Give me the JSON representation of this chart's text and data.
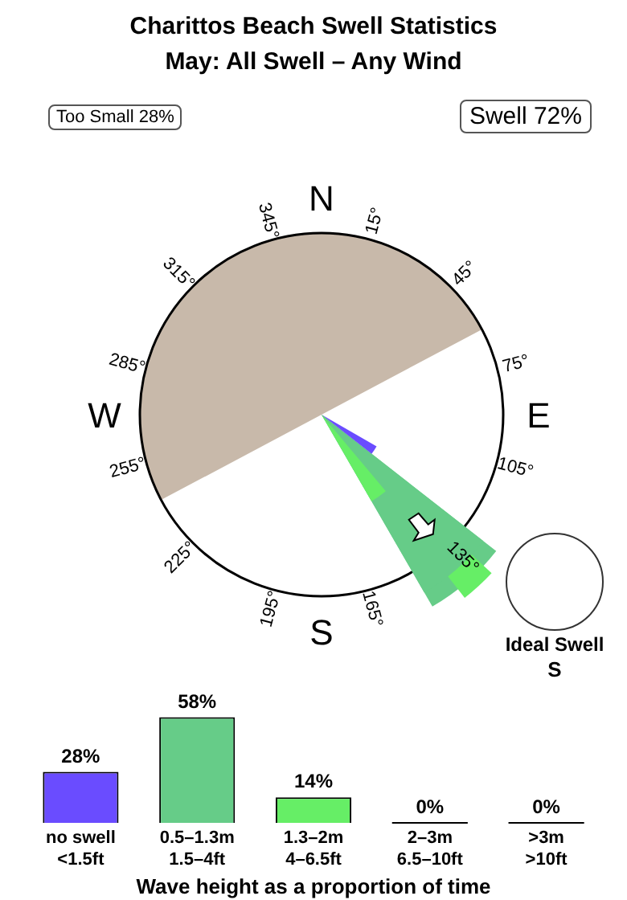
{
  "chart_data": [
    {
      "type": "other",
      "title": "Charittos Beach Swell Statistics",
      "subtitle": "May: All Swell – Any Wind",
      "annotations": [
        "Too Small 28%",
        "Swell 72%",
        "N",
        "E",
        "S",
        "W",
        "15°",
        "45°",
        "75°",
        "105°",
        "135°",
        "165°",
        "195°",
        "225°",
        "255°",
        "285°",
        "315°",
        "345°",
        "Ideal Swell",
        "S"
      ]
    },
    {
      "type": "bar",
      "categories": [
        "no swell\n<1.5ft",
        "0.5–1.3m\n1.5–4ft",
        "1.3–2m\n4–6.5ft",
        "2–3m\n6.5–10ft",
        ">3m\n>10ft"
      ],
      "values": [
        28,
        58,
        14,
        0,
        0
      ],
      "colors": [
        "#6a4cff",
        "#66cc88",
        "#66ee66",
        "#ffffff",
        "#ffffff"
      ],
      "value_labels": [
        "28%",
        "58%",
        "14%",
        "0%",
        "0%"
      ],
      "xlabel": "Wave height as a proportion of time",
      "grid": false,
      "legend": false
    }
  ]
}
